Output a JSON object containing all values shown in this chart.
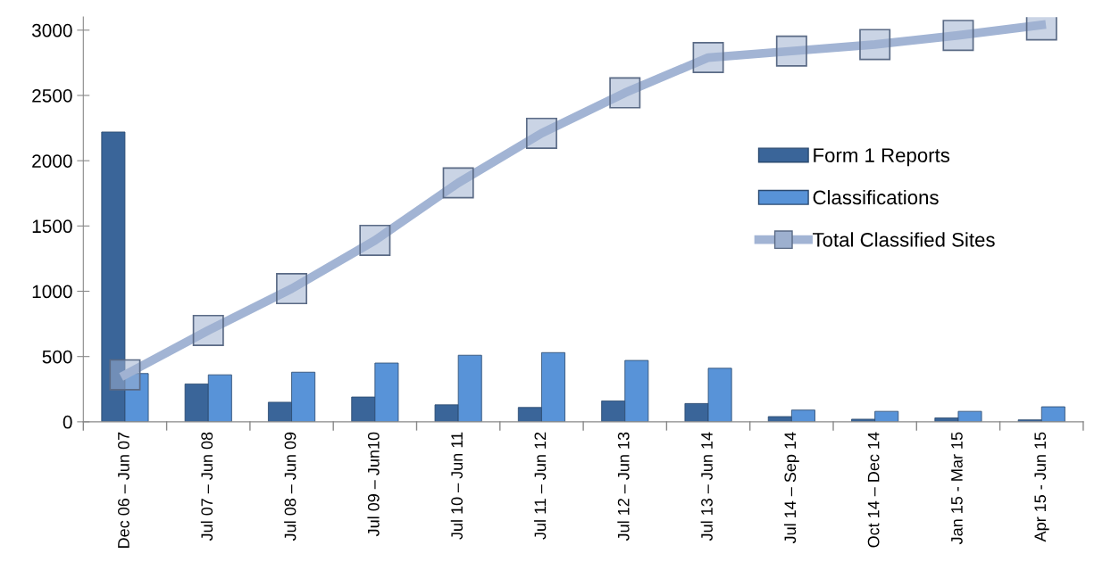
{
  "chart_data": {
    "type": "bar",
    "categories": [
      "Dec 06 – Jun 07",
      "Jul 07 – Jun 08",
      "Jul 08 – Jun 09",
      "Jul 09 – Jun10",
      "Jul 10 – Jun 11",
      "Jul 11 – Jun 12",
      "Jul 12 – Jun 13",
      "Jul 13 – Jun 14",
      "Jul 14 – Sep 14",
      "Oct 14 – Dec 14",
      "Jan 15 - Mar 15",
      "Apr 15 - Jun 15"
    ],
    "series": [
      {
        "name": "Form 1 Reports",
        "color": "#3a6599",
        "values": [
          2220,
          290,
          150,
          190,
          130,
          110,
          160,
          140,
          40,
          20,
          30,
          15
        ]
      },
      {
        "name": "Classifications",
        "color": "#5893d8",
        "values": [
          370,
          360,
          380,
          450,
          510,
          530,
          470,
          410,
          90,
          80,
          80,
          115
        ]
      },
      {
        "name": "Total Classified Sites",
        "type": "line",
        "color": "#a2b4d4",
        "marker": "square",
        "values": [
          360,
          700,
          1020,
          1390,
          1830,
          2210,
          2520,
          2790,
          2840,
          2890,
          2960,
          3040
        ]
      }
    ],
    "ylim": [
      0,
      3100
    ],
    "yticks": [
      0,
      500,
      1000,
      1500,
      2000,
      2500,
      3000
    ],
    "grid": false,
    "legend": "right"
  }
}
